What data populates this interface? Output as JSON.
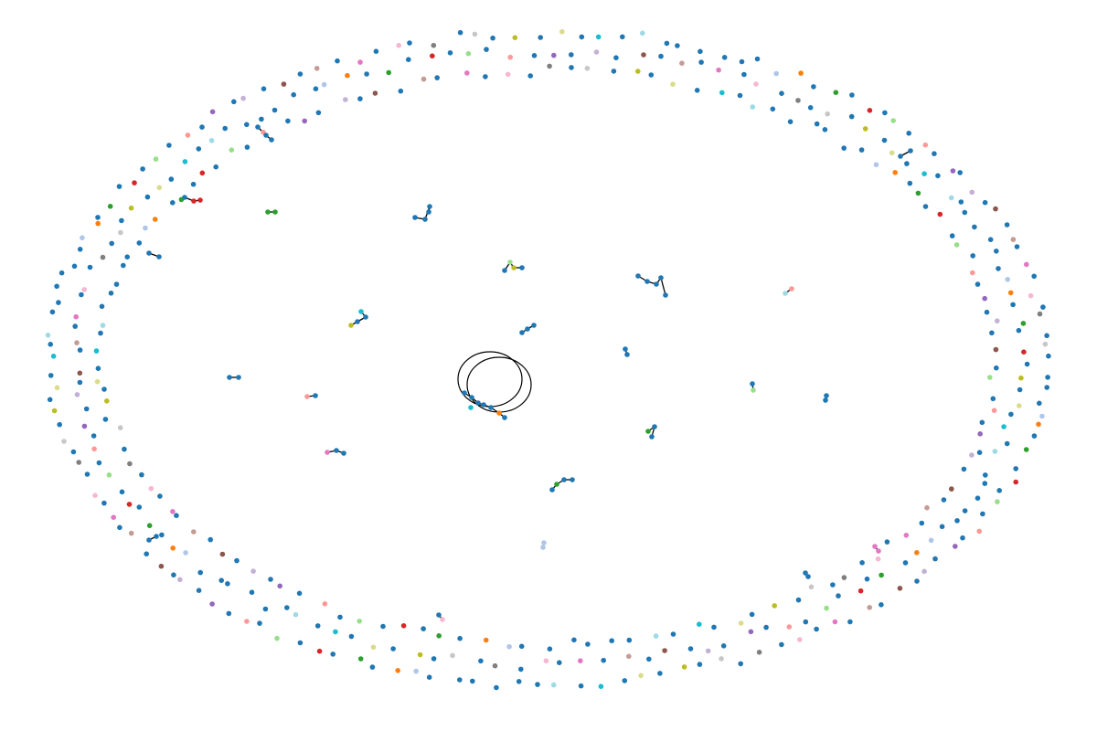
{
  "graph": {
    "palette": {
      "blue": "#1f77b4",
      "orange": "#ff7f0e",
      "green": "#2ca02c",
      "red": "#d62728",
      "purple": "#9467bd",
      "brown": "#8c564b",
      "pink": "#e377c2",
      "gray": "#7f7f7f",
      "olive": "#bcbd22",
      "cyan": "#17becf",
      "lightblue": "#aec7e8",
      "lightorange": "#ffbb78",
      "lightgreen": "#98df8a",
      "salmon": "#ff9896",
      "lavender": "#c5b0d5",
      "tan": "#c49c94",
      "lightpink": "#f7b6d2",
      "lightgray": "#c7c7c7",
      "khaki": "#dbdb8d",
      "skyblue": "#9edae5"
    },
    "node_colors": [
      "#1f77b4",
      "#1f77b4",
      "#1f77b4",
      "#1f77b4",
      "#aec7e8",
      "#ff7f0e",
      "#1f77b4",
      "#2ca02c",
      "#1f77b4",
      "#d62728",
      "#1f77b4",
      "#98df8a",
      "#1f77b4",
      "#ff9896",
      "#1f77b4",
      "#9467bd",
      "#1f77b4",
      "#c5b0d5",
      "#1f77b4",
      "#8c564b",
      "#1f77b4",
      "#c49c94",
      "#1f77b4",
      "#e377c2",
      "#1f77b4",
      "#f7b6d2",
      "#1f77b4",
      "#7f7f7f",
      "#1f77b4",
      "#c7c7c7",
      "#1f77b4",
      "#bcbd22",
      "#1f77b4",
      "#dbdb8d",
      "#1f77b4",
      "#17becf",
      "#1f77b4",
      "#9edae5",
      "#1f77b4",
      "#1f77b4"
    ],
    "edge_color": "#000000"
  }
}
